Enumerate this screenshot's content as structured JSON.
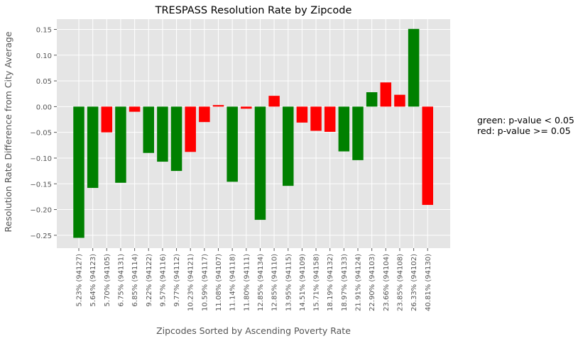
{
  "chart_data": {
    "type": "bar",
    "title": "TRESPASS Resolution Rate by Zipcode",
    "xlabel": "Zipcodes Sorted by Ascending Poverty Rate",
    "ylabel": "Resolution Rate Difference from City Average",
    "ylim": [
      -0.275,
      0.17
    ],
    "yticks": [
      -0.25,
      -0.2,
      -0.15,
      -0.1,
      -0.05,
      0.0,
      0.05,
      0.1,
      0.15
    ],
    "ytick_labels": [
      "−0.25",
      "−0.20",
      "−0.15",
      "−0.10",
      "−0.05",
      "0.00",
      "0.05",
      "0.10",
      "0.15"
    ],
    "grid": true,
    "colors": {
      "green": "#008000",
      "red": "#ff0000",
      "background": "#e5e5e5",
      "grid": "#ffffff"
    },
    "categories": [
      "5.23%  (94127)",
      "5.64%  (94123)",
      "5.70%  (94105)",
      "6.75%  (94131)",
      "6.85%  (94114)",
      "9.22%  (94122)",
      "9.57%  (94116)",
      "9.77%  (94112)",
      "10.23%  (94121)",
      "10.59%  (94117)",
      "11.08%  (94107)",
      "11.14%  (94118)",
      "11.80%  (94111)",
      "12.85%  (94134)",
      "12.85%  (94110)",
      "13.95%  (94115)",
      "14.51%  (94109)",
      "15.71%  (94158)",
      "18.19%  (94132)",
      "18.97%  (94133)",
      "21.91%  (94124)",
      "22.90%  (94103)",
      "23.66%  (94104)",
      "23.85%  (94108)",
      "26.33%  (94102)",
      "40.81%  (94130)"
    ],
    "values": [
      -0.255,
      -0.158,
      -0.05,
      -0.148,
      -0.01,
      -0.09,
      -0.107,
      -0.125,
      -0.088,
      -0.03,
      0.003,
      -0.146,
      -0.004,
      -0.22,
      0.021,
      -0.154,
      -0.031,
      -0.047,
      -0.049,
      -0.087,
      -0.104,
      0.028,
      0.047,
      0.023,
      0.151,
      -0.191
    ],
    "bar_colors": [
      "green",
      "green",
      "red",
      "green",
      "red",
      "green",
      "green",
      "green",
      "red",
      "red",
      "red",
      "green",
      "red",
      "green",
      "red",
      "green",
      "red",
      "red",
      "red",
      "green",
      "green",
      "green",
      "red",
      "red",
      "green",
      "red"
    ],
    "annotation": {
      "line1": "green: p-value < 0.05",
      "line2": "red: p-value >= 0.05"
    }
  }
}
